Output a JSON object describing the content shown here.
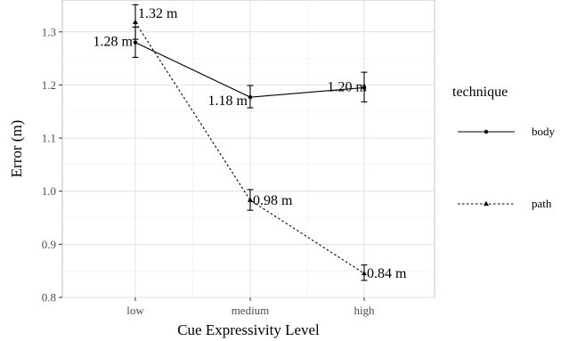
{
  "chart_data": {
    "type": "line",
    "xlabel": "Cue Expressivity Level",
    "ylabel": "Error (m)",
    "categories": [
      "low",
      "medium",
      "high"
    ],
    "ylim": [
      0.8,
      1.36
    ],
    "yticks": [
      0.8,
      0.9,
      1.0,
      1.1,
      1.2,
      1.3
    ],
    "ytick_labels": [
      "0.8",
      "0.9",
      "1.0",
      "1.1",
      "1.2",
      "1.3"
    ],
    "grid": true,
    "legend": {
      "title": "technique",
      "position": "right"
    },
    "series": [
      {
        "name": "body",
        "line_style": "solid",
        "marker": "circle",
        "values": [
          1.28,
          1.177,
          1.195
        ],
        "error_low": [
          1.252,
          1.157,
          1.168
        ],
        "error_high": [
          1.309,
          1.199,
          1.224
        ],
        "data_labels": [
          "1.28 m",
          "1.18 m",
          "1.20 m"
        ]
      },
      {
        "name": "path",
        "line_style": "dotted",
        "marker": "triangle",
        "values": [
          1.318,
          0.983,
          0.845
        ],
        "error_low": [
          1.286,
          0.964,
          0.832
        ],
        "error_high": [
          1.351,
          1.003,
          0.861
        ],
        "data_labels": [
          "1.32 m",
          "0.98 m",
          "0.84 m"
        ]
      }
    ]
  }
}
